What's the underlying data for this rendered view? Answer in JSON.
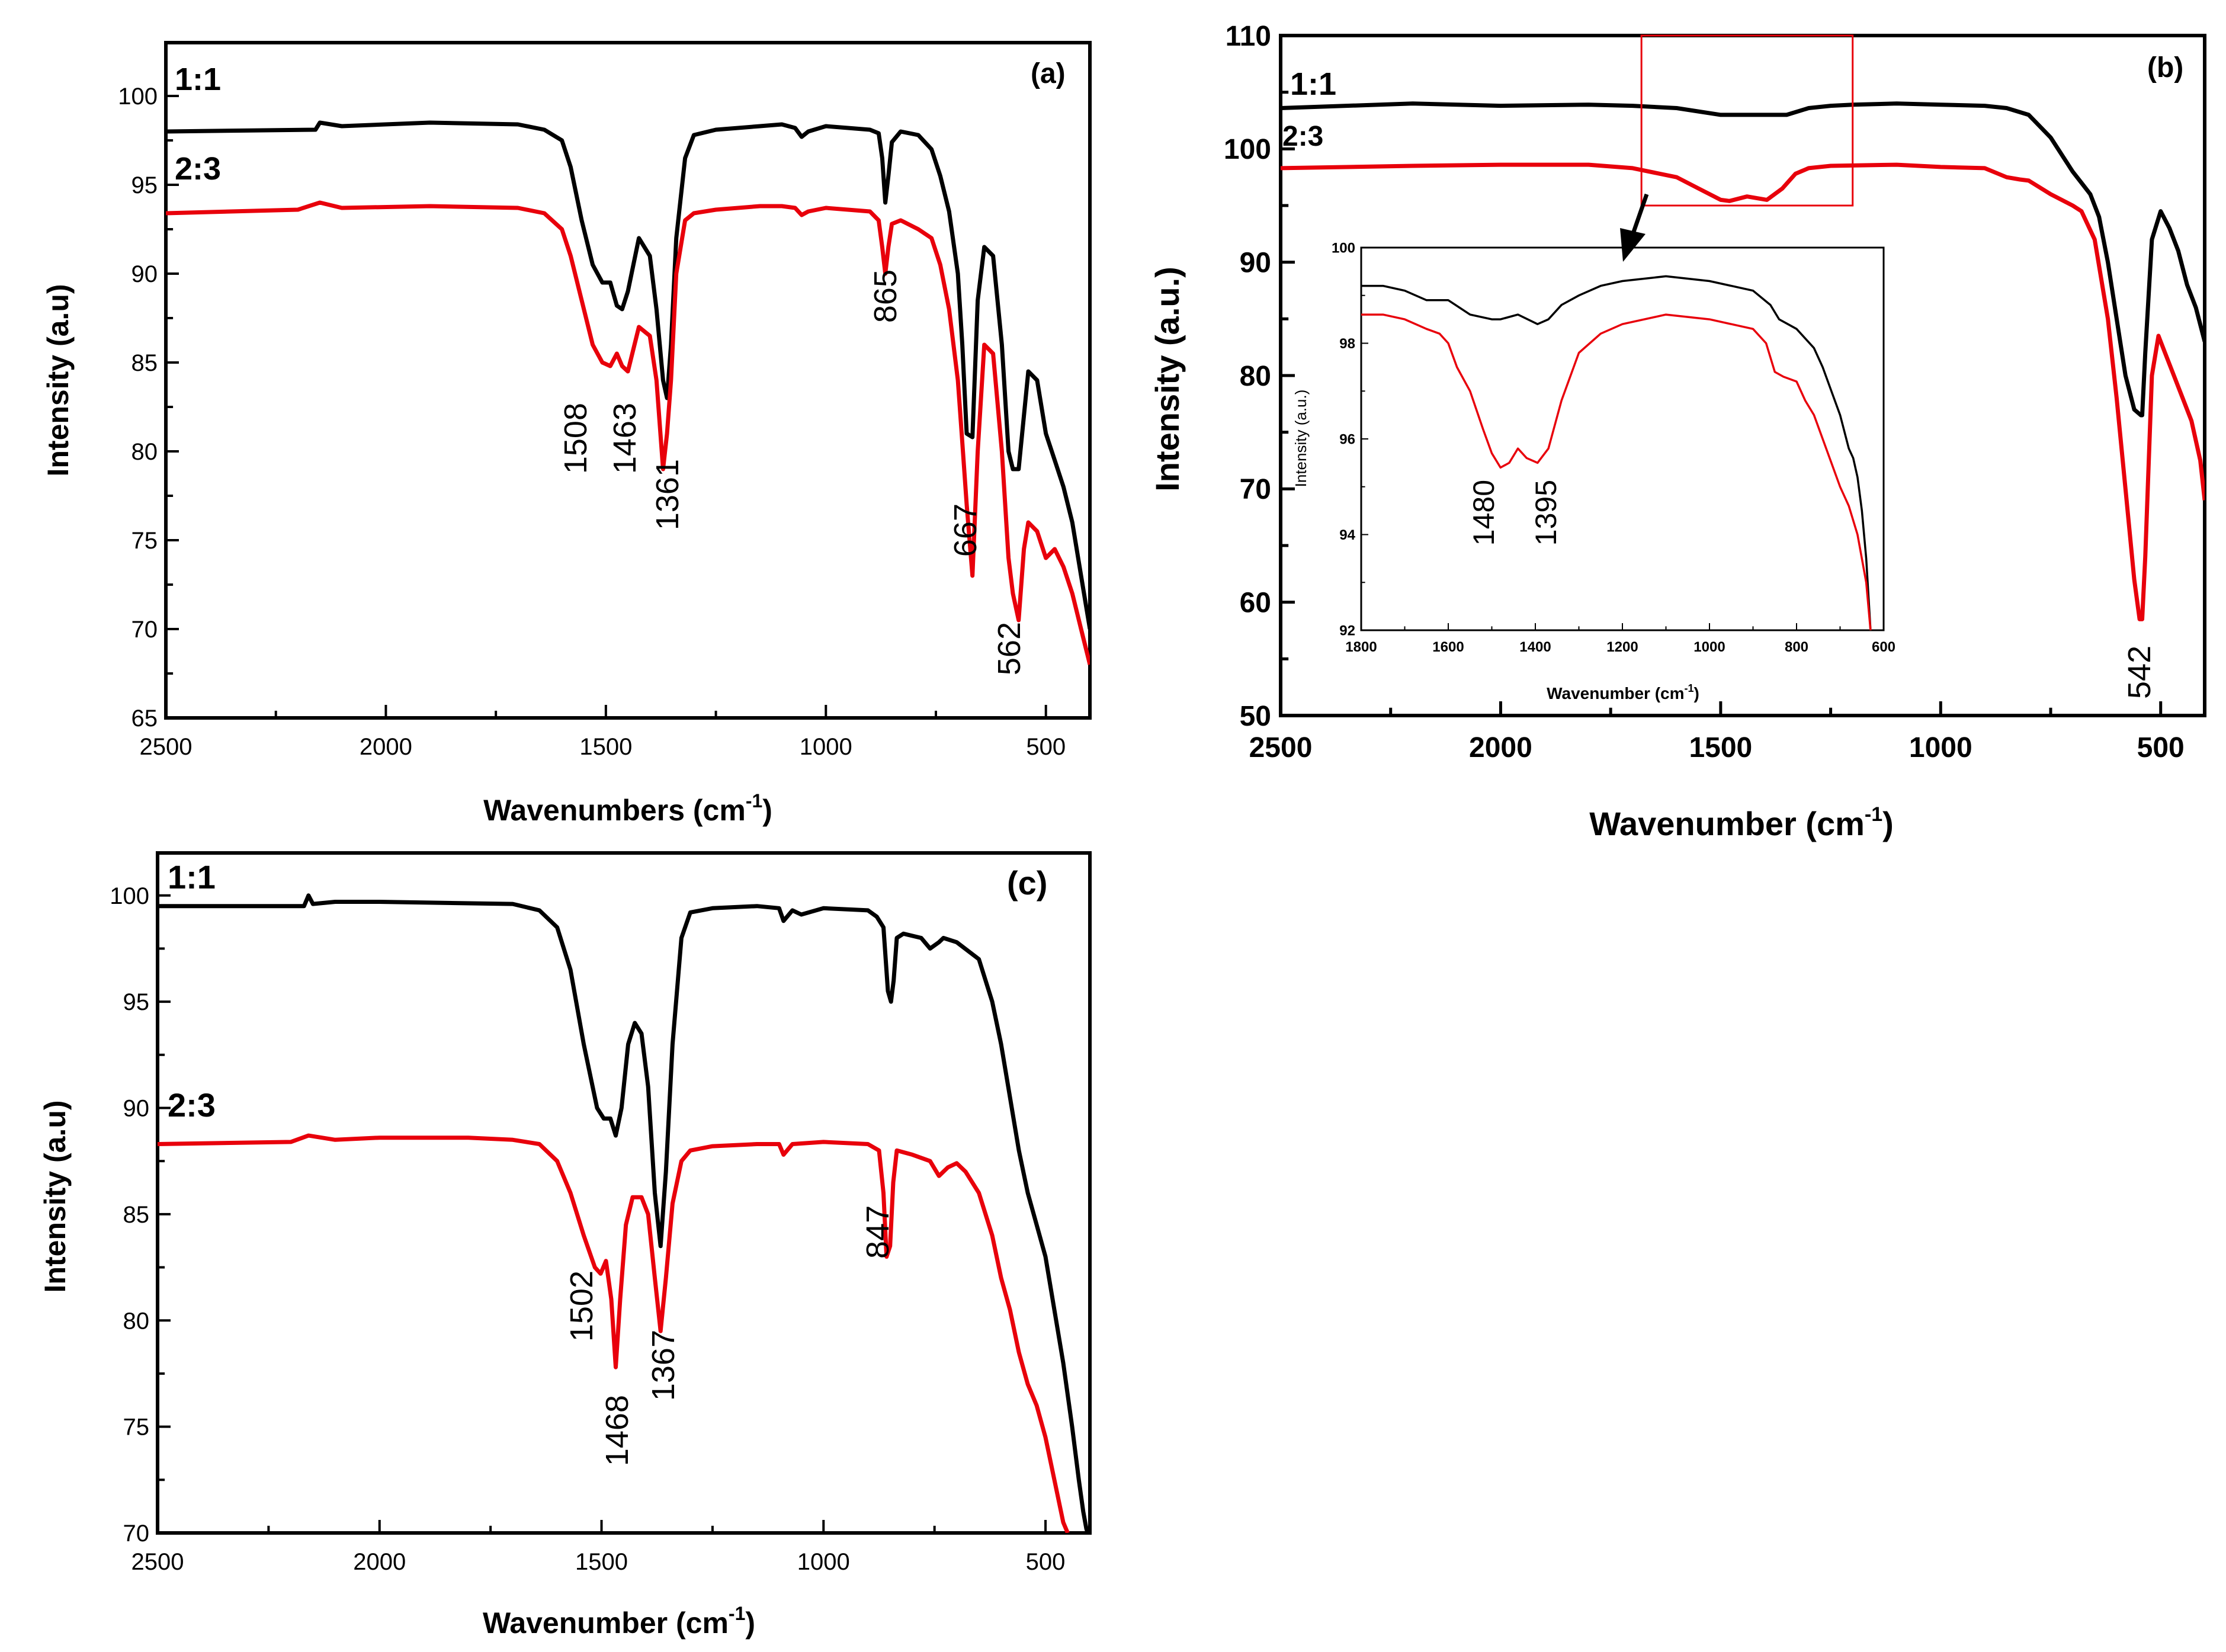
{
  "chart_data": [
    {
      "id": "a",
      "type": "line",
      "panel_label": "(a)",
      "xlabel": "Wavenumbers (cm",
      "xlabel_sup": "-1",
      "xlabel_end": ")",
      "ylabel": "Intensity (a.u)",
      "xlim": [
        2500,
        400
      ],
      "ylim": [
        65,
        103
      ],
      "xticks": [
        2500,
        2000,
        1500,
        1000,
        500
      ],
      "yticks": [
        65,
        70,
        75,
        80,
        85,
        90,
        95,
        100
      ],
      "series": [
        {
          "name": "1:1",
          "color": "#000000",
          "x": [
            2500,
            2160,
            2150,
            2100,
            1900,
            1700,
            1640,
            1600,
            1580,
            1555,
            1530,
            1508,
            1490,
            1475,
            1463,
            1450,
            1425,
            1400,
            1385,
            1370,
            1361,
            1352,
            1340,
            1320,
            1300,
            1250,
            1150,
            1100,
            1070,
            1055,
            1040,
            1000,
            950,
            900,
            880,
            872,
            865,
            858,
            850,
            830,
            790,
            760,
            740,
            720,
            700,
            690,
            680,
            667,
            655,
            640,
            620,
            600,
            585,
            575,
            562,
            550,
            540,
            520,
            500,
            480,
            460,
            440,
            420,
            400
          ],
          "y": [
            98.0,
            98.1,
            98.5,
            98.3,
            98.5,
            98.4,
            98.1,
            97.5,
            96.0,
            93.0,
            90.5,
            89.5,
            89.5,
            88.2,
            88.0,
            89.0,
            92.0,
            91.0,
            88.0,
            84.0,
            83.0,
            86.0,
            92.0,
            96.5,
            97.8,
            98.1,
            98.3,
            98.4,
            98.2,
            97.7,
            98.0,
            98.3,
            98.2,
            98.1,
            97.9,
            96.5,
            94.0,
            95.5,
            97.4,
            98.0,
            97.8,
            97.0,
            95.5,
            93.5,
            90.0,
            86.0,
            81.0,
            80.8,
            88.5,
            91.5,
            91.0,
            86.0,
            80.0,
            79.0,
            79.0,
            82.0,
            84.5,
            84.0,
            81.0,
            79.5,
            78.0,
            76.0,
            73.0,
            70.0
          ]
        },
        {
          "name": "2:3",
          "color": "#e8000b",
          "x": [
            2500,
            2200,
            2150,
            2100,
            1900,
            1700,
            1640,
            1600,
            1580,
            1555,
            1530,
            1508,
            1490,
            1475,
            1463,
            1450,
            1425,
            1400,
            1385,
            1370,
            1361,
            1352,
            1340,
            1320,
            1300,
            1250,
            1150,
            1100,
            1070,
            1055,
            1040,
            1000,
            950,
            900,
            880,
            872,
            865,
            858,
            850,
            830,
            790,
            760,
            740,
            720,
            700,
            690,
            680,
            667,
            655,
            640,
            620,
            600,
            585,
            575,
            562,
            550,
            540,
            520,
            500,
            480,
            460,
            440,
            420,
            400
          ],
          "y": [
            93.4,
            93.6,
            94.0,
            93.7,
            93.8,
            93.7,
            93.4,
            92.5,
            91.0,
            88.5,
            86.0,
            85.0,
            84.8,
            85.5,
            84.8,
            84.5,
            87.0,
            86.5,
            84.0,
            79.0,
            81.0,
            84.0,
            90.0,
            93.0,
            93.4,
            93.6,
            93.8,
            93.8,
            93.7,
            93.3,
            93.5,
            93.7,
            93.6,
            93.5,
            93.0,
            91.5,
            90.0,
            91.5,
            92.8,
            93.0,
            92.5,
            92.0,
            90.5,
            88.0,
            84.0,
            80.5,
            77.0,
            73.0,
            80.0,
            86.0,
            85.5,
            80.0,
            74.0,
            72.0,
            70.5,
            74.5,
            76.0,
            75.5,
            74.0,
            74.5,
            73.5,
            72.0,
            70.0,
            68.0
          ]
        }
      ],
      "series_labels": [
        "1:1",
        "2:3"
      ],
      "annotations": [
        "1508",
        "1463",
        "1361",
        "865",
        "667",
        "562"
      ]
    },
    {
      "id": "b",
      "type": "line",
      "panel_label": "(b)",
      "xlabel": "Wavenumber (cm",
      "xlabel_sup": "-1",
      "xlabel_end": ")",
      "ylabel": "Intensity (a.u.)",
      "xlim": [
        2500,
        400
      ],
      "ylim": [
        50,
        110
      ],
      "xticks": [
        2500,
        2000,
        1500,
        1000,
        500
      ],
      "yticks": [
        50,
        60,
        70,
        80,
        90,
        100,
        110
      ],
      "series": [
        {
          "name": "1:1",
          "color": "#000000",
          "x": [
            2500,
            2200,
            2000,
            1800,
            1700,
            1600,
            1500,
            1450,
            1400,
            1350,
            1300,
            1250,
            1200,
            1100,
            1000,
            900,
            850,
            800,
            750,
            700,
            680,
            660,
            640,
            620,
            600,
            580,
            560,
            545,
            542,
            535,
            520,
            500,
            480,
            460,
            440,
            420,
            400
          ],
          "y": [
            103.6,
            104.0,
            103.8,
            103.9,
            103.8,
            103.6,
            103.0,
            103.0,
            103.0,
            103.0,
            103.6,
            103.8,
            103.9,
            104.0,
            103.9,
            103.8,
            103.6,
            103.0,
            101.0,
            98.0,
            97.0,
            96.0,
            94.0,
            90.0,
            85.0,
            80.0,
            77.0,
            76.5,
            76.5,
            82.0,
            92.0,
            94.5,
            93.0,
            91.0,
            88.0,
            86.0,
            83.0
          ]
        },
        {
          "name": "2:3",
          "color": "#e8000b",
          "x": [
            2500,
            2200,
            2000,
            1800,
            1700,
            1600,
            1550,
            1500,
            1480,
            1440,
            1395,
            1360,
            1330,
            1300,
            1250,
            1100,
            1000,
            900,
            850,
            820,
            800,
            750,
            700,
            680,
            650,
            620,
            600,
            580,
            560,
            548,
            542,
            535,
            520,
            505,
            490,
            470,
            450,
            430,
            410,
            400
          ],
          "y": [
            98.3,
            98.5,
            98.6,
            98.6,
            98.3,
            97.5,
            96.5,
            95.5,
            95.4,
            95.8,
            95.5,
            96.5,
            97.8,
            98.3,
            98.5,
            98.6,
            98.4,
            98.3,
            97.5,
            97.3,
            97.2,
            96.0,
            95.0,
            94.5,
            92.0,
            85.0,
            78.0,
            70.0,
            62.0,
            58.5,
            58.5,
            64.0,
            80.0,
            83.5,
            82.0,
            80.0,
            78.0,
            76.0,
            72.5,
            69.0
          ]
        }
      ],
      "series_labels": [
        "1:1",
        "2:3"
      ],
      "annotations": [
        "542"
      ],
      "highlight_box": {
        "x_range": [
          1680,
          1200
        ],
        "y_range": [
          95.0,
          110.0
        ]
      },
      "inset": {
        "xlabel": "Wavenumber (cm",
        "xlabel_sup": "-1",
        "xlabel_end": ")",
        "ylabel": "Intensity (a.u.)",
        "xlim": [
          1800,
          600
        ],
        "ylim": [
          92,
          100
        ],
        "xticks": [
          1800,
          1600,
          1400,
          1200,
          1000,
          800,
          600
        ],
        "yticks": [
          92,
          94,
          96,
          98,
          100
        ],
        "series": [
          {
            "name": "1:1",
            "color": "#000000",
            "x": [
              1800,
              1750,
              1700,
              1650,
              1600,
              1550,
              1500,
              1480,
              1440,
              1395,
              1370,
              1340,
              1300,
              1250,
              1200,
              1100,
              1000,
              950,
              900,
              860,
              840,
              820,
              800,
              780,
              760,
              740,
              720,
              700,
              680,
              670,
              660,
              650,
              640,
              630
            ],
            "y": [
              99.2,
              99.2,
              99.1,
              98.9,
              98.9,
              98.6,
              98.5,
              98.5,
              98.6,
              98.4,
              98.5,
              98.8,
              99.0,
              99.2,
              99.3,
              99.4,
              99.3,
              99.2,
              99.1,
              98.8,
              98.5,
              98.4,
              98.3,
              98.1,
              97.9,
              97.5,
              97.0,
              96.5,
              95.8,
              95.6,
              95.2,
              94.5,
              93.5,
              92.0
            ]
          },
          {
            "name": "2:3",
            "color": "#e8000b",
            "x": [
              1800,
              1750,
              1700,
              1650,
              1620,
              1600,
              1580,
              1550,
              1520,
              1500,
              1480,
              1460,
              1440,
              1420,
              1395,
              1370,
              1340,
              1300,
              1250,
              1200,
              1100,
              1000,
              950,
              900,
              870,
              850,
              830,
              800,
              780,
              760,
              740,
              720,
              700,
              680,
              660,
              640,
              630
            ],
            "y": [
              98.6,
              98.6,
              98.5,
              98.3,
              98.2,
              98.0,
              97.5,
              97.0,
              96.2,
              95.7,
              95.4,
              95.5,
              95.8,
              95.6,
              95.5,
              95.8,
              96.8,
              97.8,
              98.2,
              98.4,
              98.6,
              98.5,
              98.4,
              98.3,
              98.0,
              97.4,
              97.3,
              97.2,
              96.8,
              96.5,
              96.0,
              95.5,
              95.0,
              94.6,
              94.0,
              93.0,
              92.0
            ]
          }
        ],
        "annotations": [
          "1480",
          "1395"
        ]
      }
    },
    {
      "id": "c",
      "type": "line",
      "panel_label": "(c)",
      "xlabel": "Wavenumber (cm",
      "xlabel_sup": "-1",
      "xlabel_end": ")",
      "ylabel": "Intensity (a.u)",
      "xlim": [
        2500,
        400
      ],
      "ylim": [
        70,
        102
      ],
      "xticks": [
        2500,
        2000,
        1500,
        1000,
        500
      ],
      "yticks": [
        70,
        75,
        80,
        85,
        90,
        95,
        100
      ],
      "series": [
        {
          "name": "1:1",
          "color": "#000000",
          "x": [
            2500,
            2170,
            2160,
            2150,
            2100,
            2000,
            1700,
            1640,
            1600,
            1570,
            1540,
            1510,
            1495,
            1480,
            1468,
            1455,
            1440,
            1425,
            1410,
            1395,
            1380,
            1367,
            1355,
            1340,
            1320,
            1300,
            1250,
            1150,
            1100,
            1090,
            1070,
            1050,
            1000,
            900,
            880,
            865,
            855,
            848,
            842,
            835,
            820,
            780,
            760,
            740,
            730,
            700,
            650,
            620,
            600,
            580,
            560,
            540,
            520,
            500,
            480,
            460,
            440,
            425,
            415,
            408,
            405,
            400
          ],
          "y": [
            99.5,
            99.5,
            100.0,
            99.6,
            99.7,
            99.7,
            99.6,
            99.3,
            98.5,
            96.5,
            93.0,
            90.0,
            89.5,
            89.5,
            88.7,
            90.0,
            93.0,
            94.0,
            93.5,
            91.0,
            86.0,
            83.5,
            87.0,
            93.0,
            98.0,
            99.2,
            99.4,
            99.5,
            99.4,
            98.8,
            99.3,
            99.1,
            99.4,
            99.3,
            99.0,
            98.5,
            95.5,
            95.0,
            96.0,
            98.0,
            98.2,
            98.0,
            97.5,
            97.8,
            98.0,
            97.8,
            97.0,
            95.0,
            93.0,
            90.5,
            88.0,
            86.0,
            84.5,
            83.0,
            80.5,
            78.0,
            75.0,
            72.5,
            71.0,
            70.2,
            70.0,
            70.0
          ]
        },
        {
          "name": "2:3",
          "color": "#e8000b",
          "x": [
            2500,
            2200,
            2160,
            2100,
            2000,
            1800,
            1700,
            1640,
            1600,
            1570,
            1540,
            1515,
            1502,
            1490,
            1478,
            1468,
            1458,
            1445,
            1430,
            1410,
            1395,
            1380,
            1367,
            1355,
            1340,
            1320,
            1300,
            1250,
            1150,
            1100,
            1090,
            1070,
            1000,
            900,
            875,
            865,
            858,
            850,
            843,
            835,
            800,
            760,
            740,
            720,
            700,
            680,
            650,
            620,
            600,
            580,
            560,
            540,
            520,
            500,
            480,
            460,
            450
          ],
          "y": [
            88.3,
            88.4,
            88.7,
            88.5,
            88.6,
            88.6,
            88.5,
            88.3,
            87.5,
            86.0,
            84.0,
            82.5,
            82.2,
            82.8,
            81.0,
            77.8,
            81.0,
            84.5,
            85.8,
            85.8,
            85.0,
            82.0,
            79.5,
            82.0,
            85.5,
            87.5,
            88.0,
            88.2,
            88.3,
            88.3,
            87.8,
            88.3,
            88.4,
            88.3,
            88.0,
            86.0,
            83.0,
            83.5,
            86.5,
            88.0,
            87.8,
            87.5,
            86.8,
            87.2,
            87.4,
            87.0,
            86.0,
            84.0,
            82.0,
            80.5,
            78.5,
            77.0,
            76.0,
            74.5,
            72.5,
            70.5,
            70.0
          ]
        }
      ],
      "series_labels": [
        "1:1",
        "2:3"
      ],
      "annotations": [
        "1502",
        "1468",
        "1367",
        "847"
      ]
    }
  ]
}
